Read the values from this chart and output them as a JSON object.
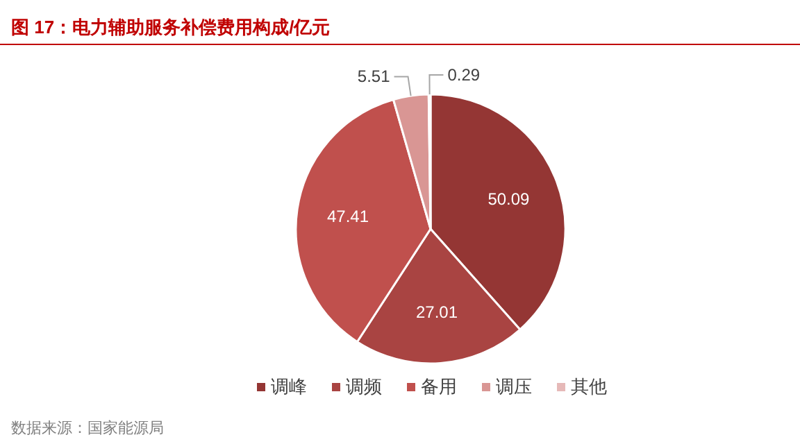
{
  "chart_data": {
    "type": "pie",
    "title": "图 17：电力辅助服务补偿费用构成/亿元",
    "categories": [
      "调峰",
      "调频",
      "备用",
      "调压",
      "其他"
    ],
    "values": [
      50.09,
      27.01,
      47.41,
      5.51,
      0.29
    ],
    "colors": [
      "#943634",
      "#a94442",
      "#c0504d",
      "#d99694",
      "#e6b9b8"
    ],
    "data_labels": true,
    "legend": "bottom",
    "annotations": [
      "数据来源：国家能源局"
    ]
  }
}
